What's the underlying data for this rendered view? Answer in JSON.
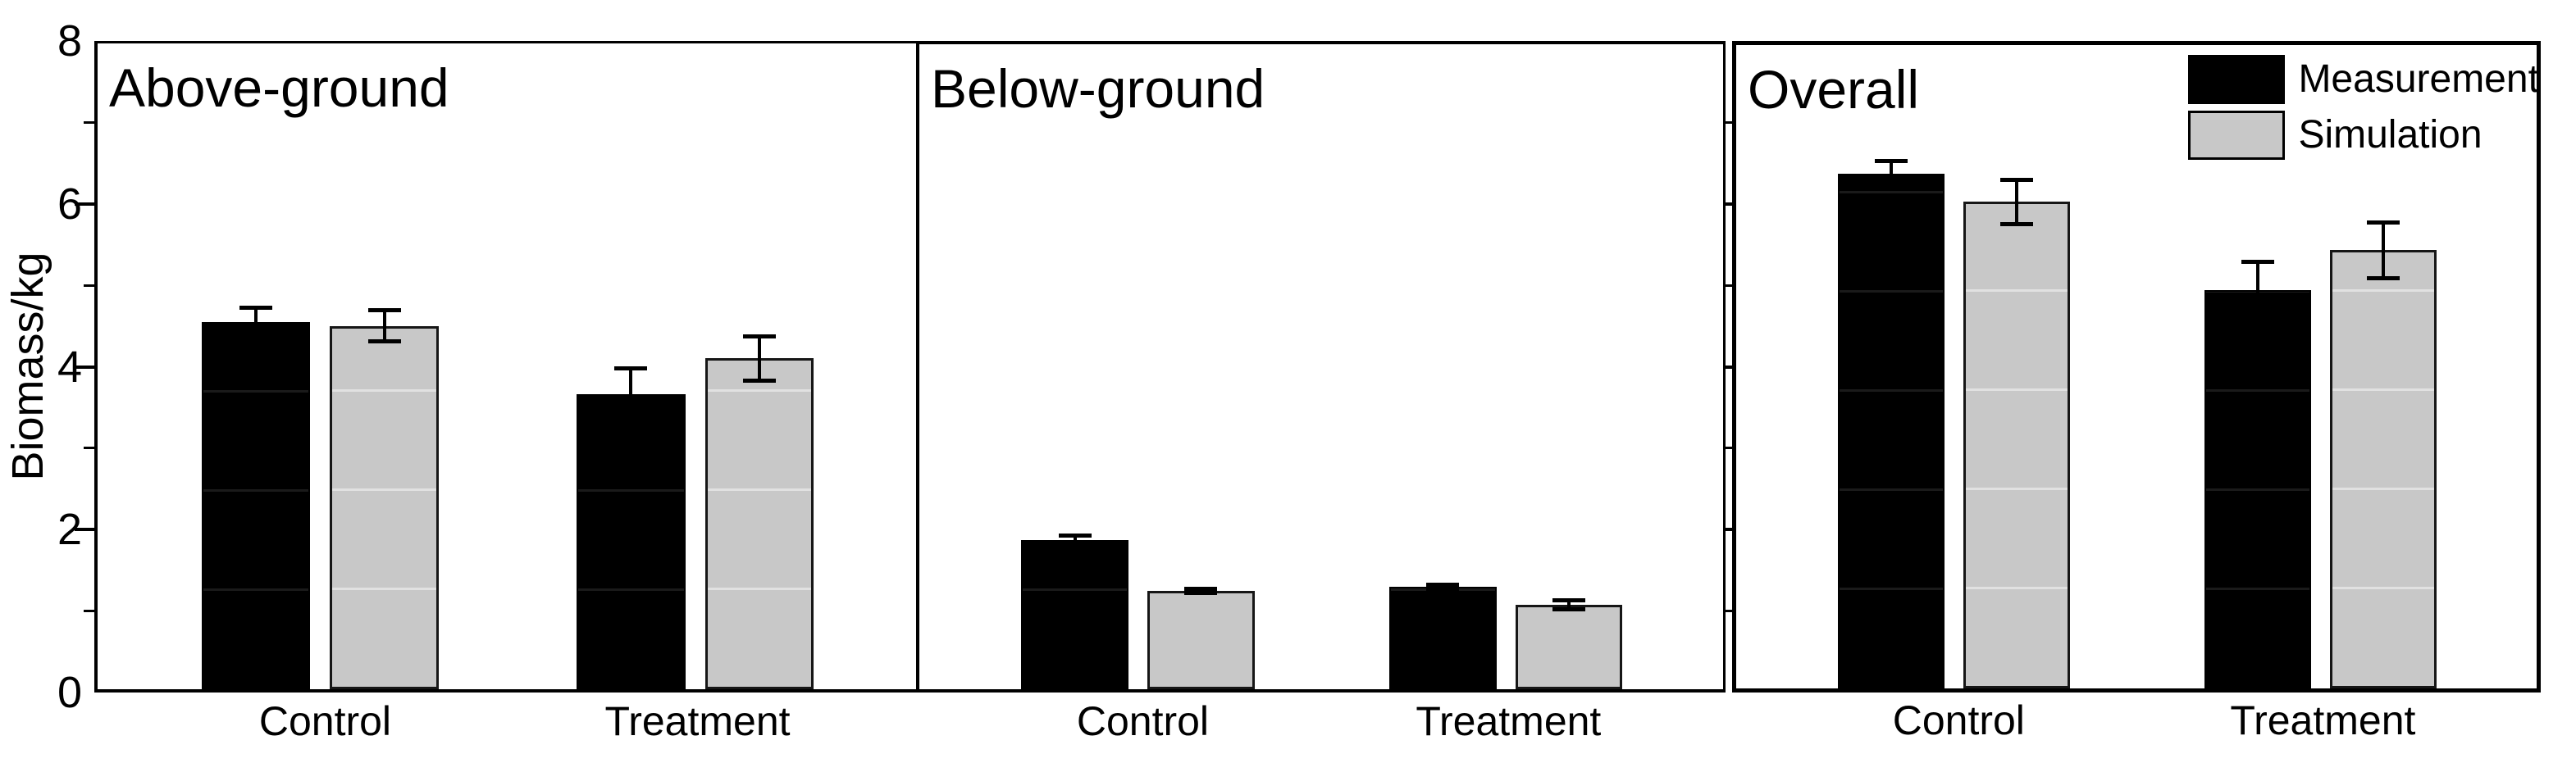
{
  "figure": {
    "ylabel": "Biomass/kg",
    "y_ticks": [
      0,
      2,
      4,
      6,
      8
    ],
    "ylim": [
      0,
      8
    ],
    "categories": [
      "Control",
      "Treatment"
    ],
    "colors": {
      "measurement": "#000000",
      "simulation": "#c8c8c8",
      "axis": "#000000",
      "background": "#ffffff"
    },
    "legend": [
      {
        "label": "Measurement",
        "series_key": "measurement"
      },
      {
        "label": "Simulation",
        "series_key": "simulation"
      }
    ]
  },
  "chart_data": [
    {
      "type": "bar",
      "title": "Above-ground",
      "categories": [
        "Control",
        "Treatment"
      ],
      "ylabel": "Biomass/kg",
      "ylim": [
        0,
        8
      ],
      "grid": false,
      "series": [
        {
          "name": "Measurement",
          "values": [
            4.55,
            3.65
          ],
          "errors": [
            0.2,
            0.35
          ]
        },
        {
          "name": "Simulation",
          "values": [
            4.5,
            4.1
          ],
          "errors": [
            0.22,
            0.3
          ]
        }
      ]
    },
    {
      "type": "bar",
      "title": "Below-ground",
      "categories": [
        "Control",
        "Treatment"
      ],
      "ylim": [
        0,
        8
      ],
      "grid": false,
      "series": [
        {
          "name": "Measurement",
          "values": [
            1.85,
            1.27
          ],
          "errors": [
            0.08,
            0.05
          ]
        },
        {
          "name": "Simulation",
          "values": [
            1.22,
            1.05
          ],
          "errors": [
            0.05,
            0.08
          ]
        }
      ]
    },
    {
      "type": "bar",
      "title": "Overall",
      "categories": [
        "Control",
        "Treatment"
      ],
      "ylim": [
        0,
        8
      ],
      "grid": false,
      "legend_position": "top-right",
      "series": [
        {
          "name": "Measurement",
          "values": [
            6.4,
            4.95
          ],
          "errors": [
            0.18,
            0.38
          ]
        },
        {
          "name": "Simulation",
          "values": [
            6.05,
            5.45
          ],
          "errors": [
            0.3,
            0.37
          ]
        }
      ]
    }
  ]
}
